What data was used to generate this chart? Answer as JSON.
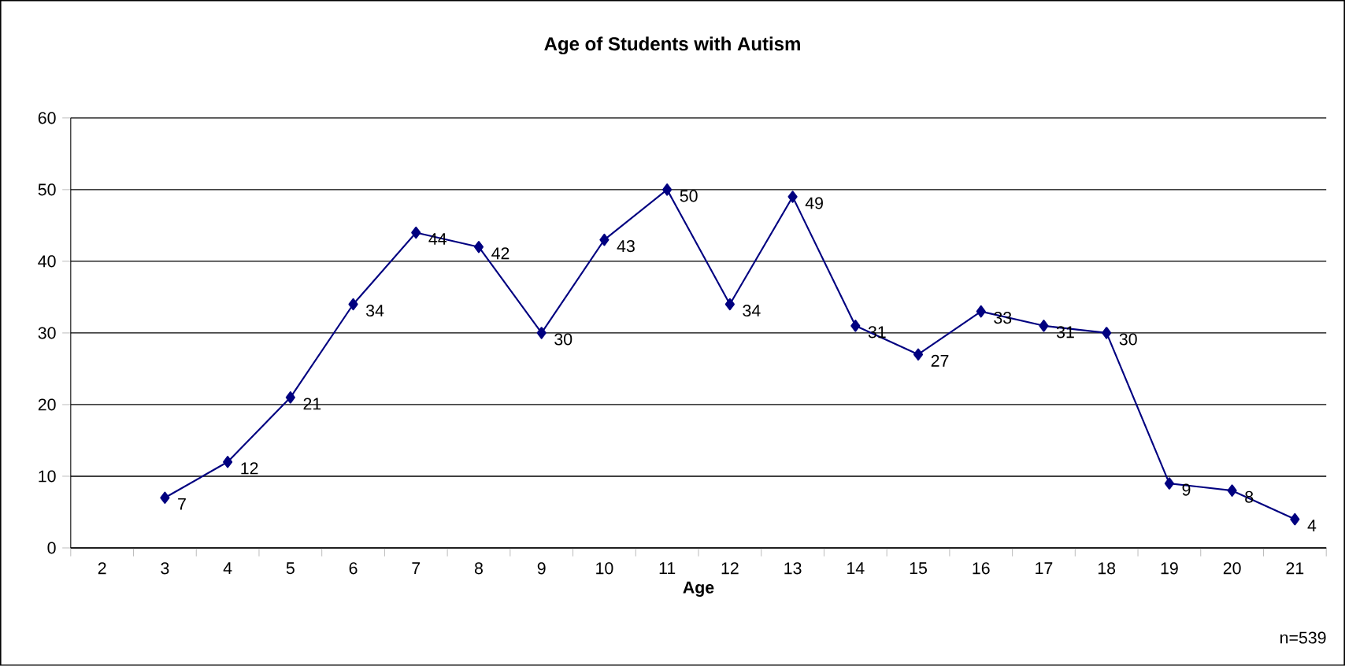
{
  "chart_data": {
    "type": "line",
    "title": "Age of Students with Autism",
    "xlabel": "Age",
    "categories": [
      "2",
      "3",
      "4",
      "5",
      "6",
      "7",
      "8",
      "9",
      "10",
      "11",
      "12",
      "13",
      "14",
      "15",
      "16",
      "17",
      "18",
      "19",
      "20",
      "21"
    ],
    "values": [
      null,
      7,
      12,
      21,
      34,
      44,
      42,
      30,
      43,
      50,
      34,
      49,
      31,
      27,
      33,
      31,
      30,
      9,
      8,
      4
    ],
    "color": "#000080",
    "marker": "diamond",
    "line_style": "solid",
    "ylim": [
      0,
      60
    ],
    "yticks": [
      0,
      10,
      20,
      30,
      40,
      50,
      60
    ],
    "grid": "y",
    "data_labels": true,
    "annotations": [
      "n=539"
    ]
  }
}
